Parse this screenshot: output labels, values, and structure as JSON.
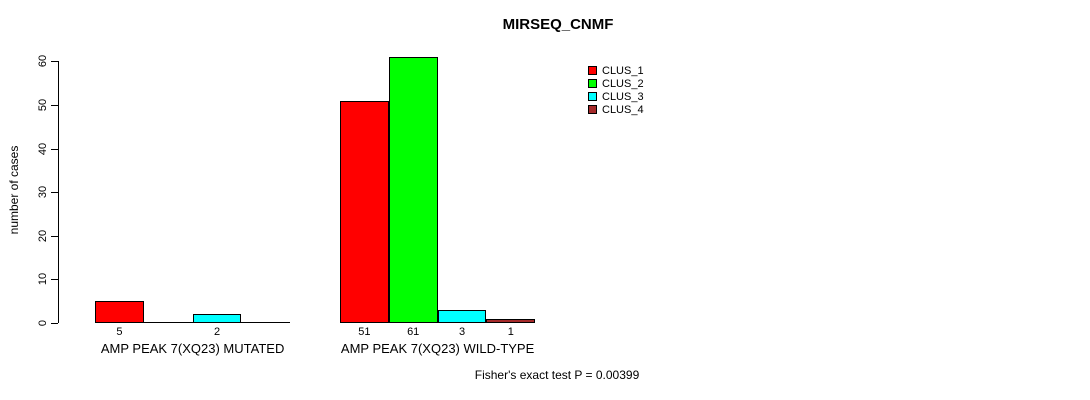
{
  "title": "MIRSEQ_CNMF",
  "annotation": "Fisher's exact test P = 0.00399",
  "chart_data": {
    "type": "bar",
    "title": "MIRSEQ_CNMF",
    "xlabel": "",
    "ylabel": "number of cases",
    "ylim": [
      0,
      60
    ],
    "yticks": [
      0,
      10,
      20,
      30,
      40,
      50,
      60
    ],
    "grid": false,
    "legend_position": "top-right",
    "bar_value_labels_shown": true,
    "categories": [
      "AMP PEAK 7(XQ23) MUTATED",
      "AMP PEAK 7(XQ23) WILD-TYPE"
    ],
    "series": [
      {
        "name": "CLUS_1",
        "color": "#ff0000",
        "values": [
          5,
          51
        ]
      },
      {
        "name": "CLUS_2",
        "color": "#00ff00",
        "values": [
          0,
          61
        ]
      },
      {
        "name": "CLUS_3",
        "color": "#00ffff",
        "values": [
          2,
          3
        ]
      },
      {
        "name": "CLUS_4",
        "color": "#a52a2a",
        "values": [
          0,
          1
        ]
      }
    ],
    "annotation": "Fisher's exact test P = 0.00399"
  }
}
